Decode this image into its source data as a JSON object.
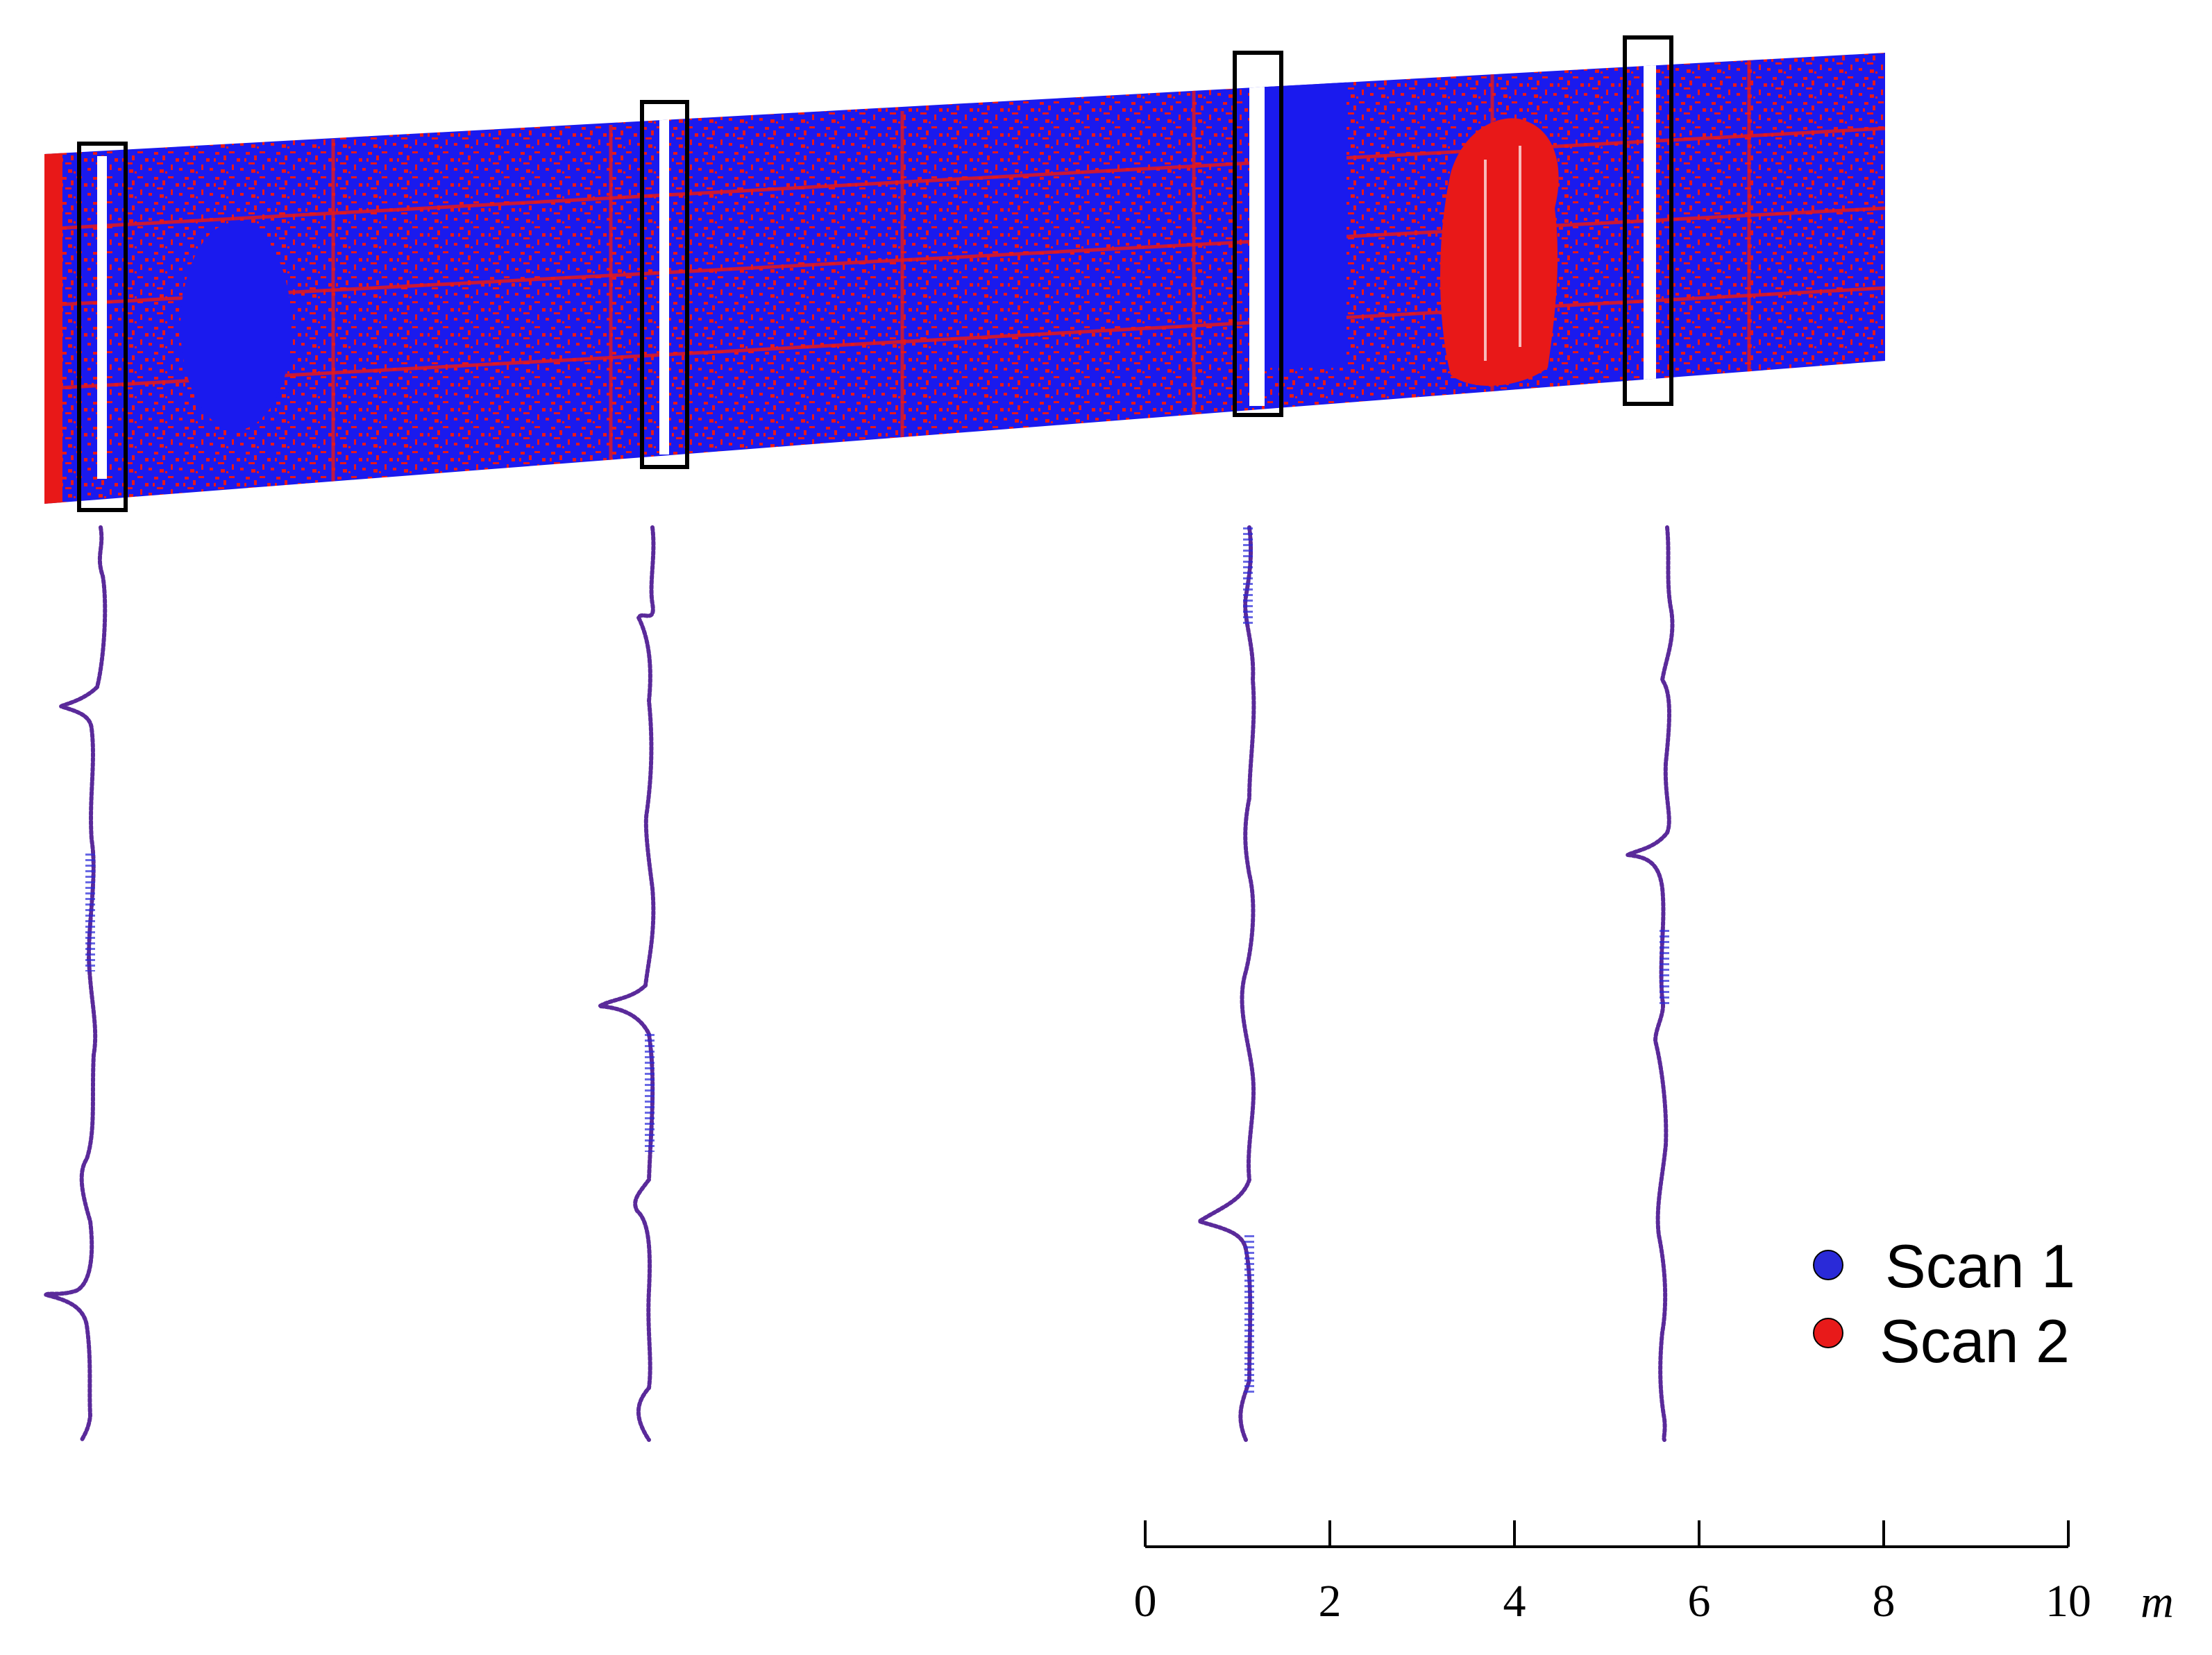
{
  "legend": [
    {
      "label": "Scan 1",
      "color": "#2a2ad8"
    },
    {
      "label": "Scan 2",
      "color": "#e81a1a"
    }
  ],
  "scale_bar": {
    "ticks": [
      "0",
      "2",
      "4",
      "6",
      "8",
      "10"
    ],
    "unit": "m"
  },
  "colors": {
    "scan1": "#1a1aee",
    "scan2": "#e81818",
    "profile": "#5a2a9a",
    "box": "#000000"
  },
  "cross_sections": 4
}
